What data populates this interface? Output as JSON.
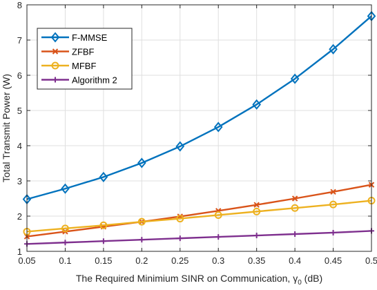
{
  "chart_data": {
    "type": "line",
    "title": "",
    "xlabel_prefix": "The Required Minimium SINR on Communication, ",
    "xlabel_symbol": "γ",
    "xlabel_subscript": "0",
    "xlabel_suffix": " (dB)",
    "ylabel": "Total Transmit Power (W)",
    "x": [
      0.05,
      0.1,
      0.15,
      0.2,
      0.25,
      0.3,
      0.35,
      0.4,
      0.45,
      0.5
    ],
    "x_tick_labels": [
      "0.05",
      "0.1",
      "0.15",
      "0.2",
      "0.25",
      "0.3",
      "0.35",
      "0.4",
      "0.45",
      "0.5"
    ],
    "y_ticks": [
      "1",
      "2",
      "3",
      "4",
      "5",
      "6",
      "7",
      "8"
    ],
    "xlim": [
      0.05,
      0.5
    ],
    "ylim": [
      1,
      8
    ],
    "grid": true,
    "legend_position": "top-left",
    "series": [
      {
        "name": "F-MMSE",
        "color": "#0072BD",
        "marker": "diamond",
        "values": [
          2.48,
          2.78,
          3.11,
          3.51,
          3.98,
          4.53,
          5.17,
          5.9,
          6.74,
          7.68
        ]
      },
      {
        "name": "ZFBF",
        "color": "#D95319",
        "marker": "x",
        "values": [
          1.42,
          1.56,
          1.7,
          1.84,
          1.99,
          2.15,
          2.32,
          2.5,
          2.69,
          2.89
        ]
      },
      {
        "name": "MFBF",
        "color": "#EDB120",
        "marker": "circle",
        "values": [
          1.56,
          1.65,
          1.74,
          1.84,
          1.93,
          2.03,
          2.13,
          2.23,
          2.33,
          2.44
        ]
      },
      {
        "name": "Algorithm 2",
        "color": "#7E2F8E",
        "marker": "plus",
        "values": [
          1.21,
          1.25,
          1.29,
          1.33,
          1.37,
          1.41,
          1.45,
          1.49,
          1.53,
          1.58
        ]
      }
    ]
  }
}
